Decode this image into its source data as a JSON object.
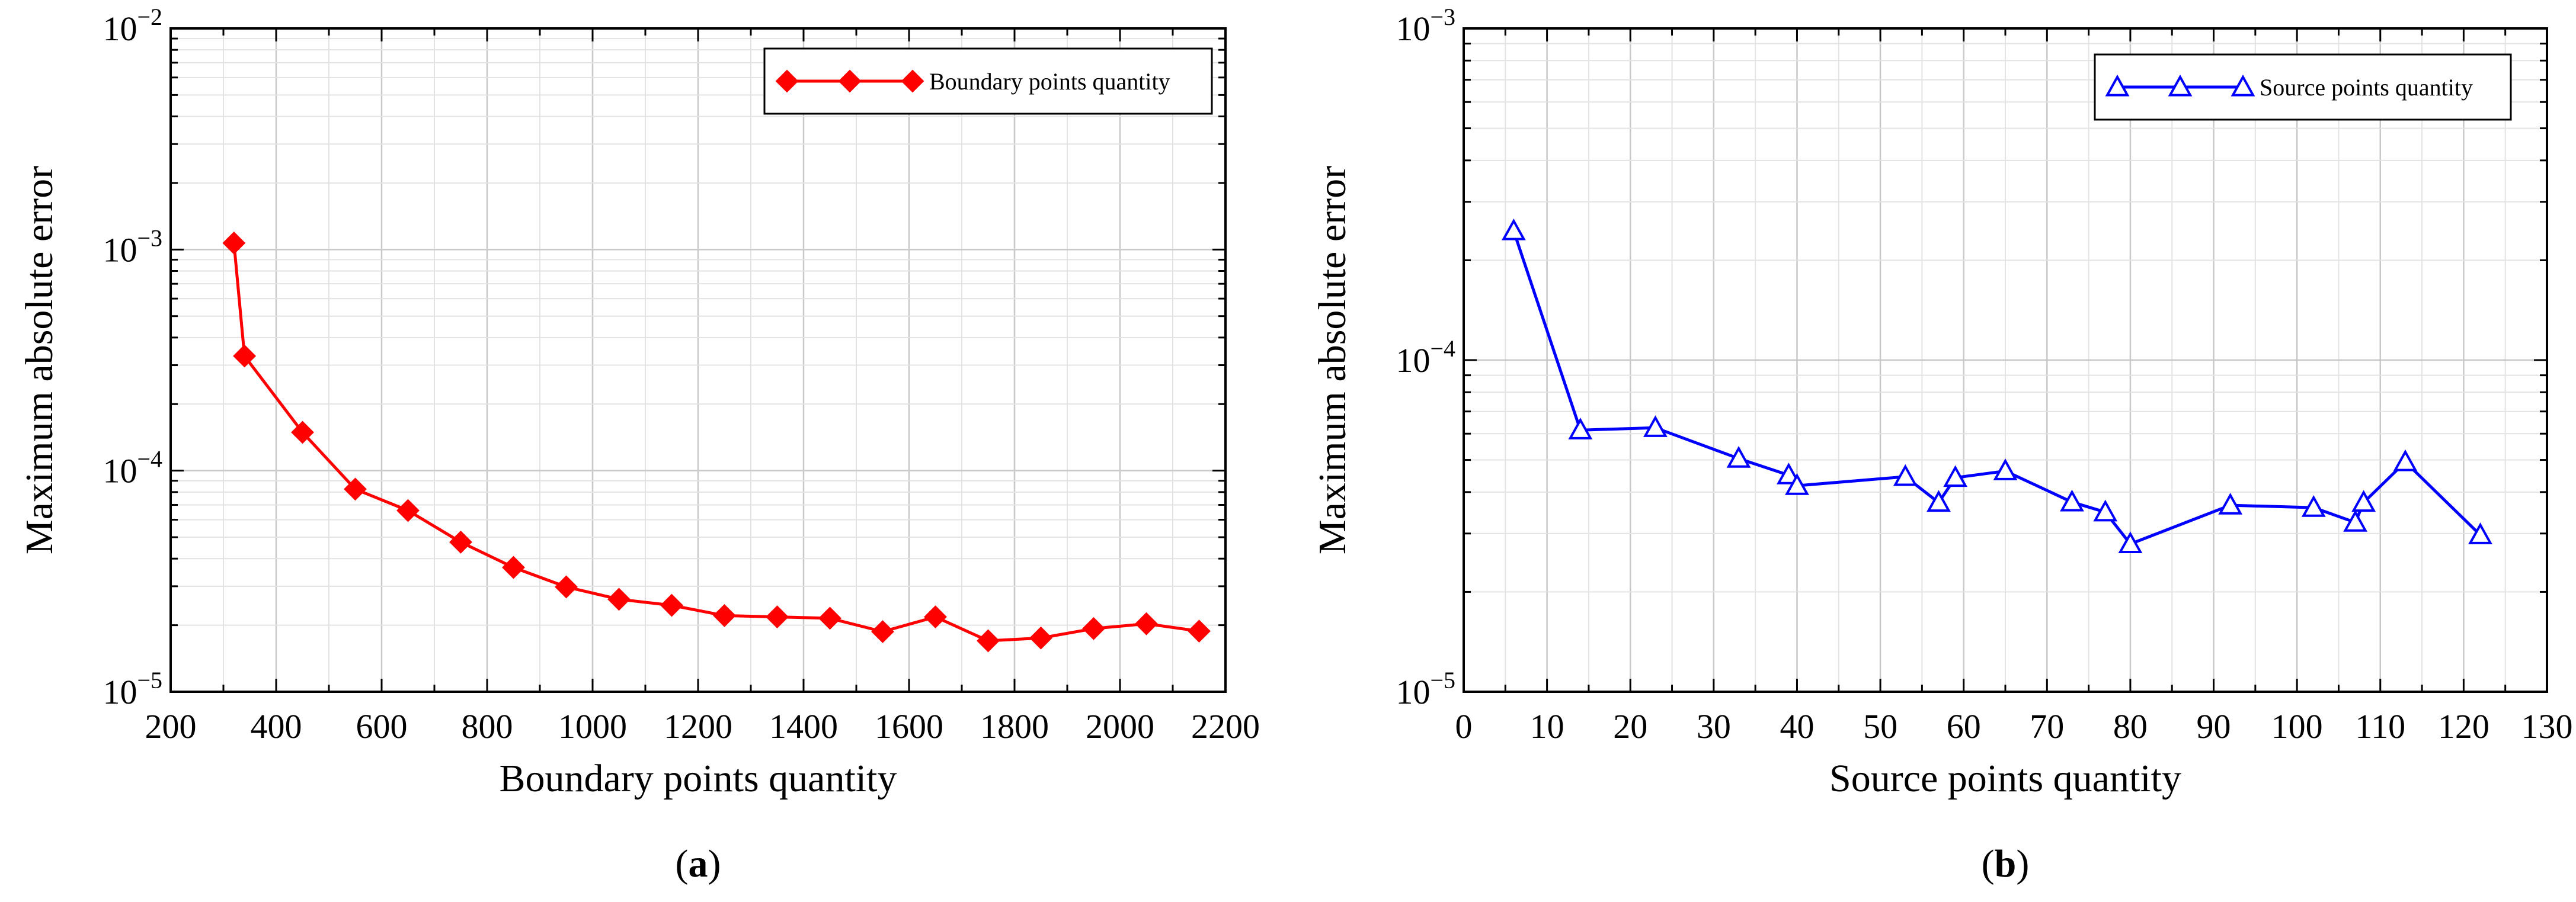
{
  "chart_data": [
    {
      "id": "a",
      "type": "line",
      "yscale": "log",
      "xlabel": "Boundary points quantity",
      "ylabel": "Maximum absolute error",
      "caption_label": "a",
      "xlim": [
        200,
        2200
      ],
      "ylim": [
        1e-05,
        0.01
      ],
      "xticks": [
        200,
        400,
        600,
        800,
        1000,
        1200,
        1400,
        1600,
        1800,
        2000,
        2200
      ],
      "xtick_labels": [
        "200",
        "400",
        "600",
        "800",
        "1000",
        "1200",
        "1400",
        "1600",
        "1800",
        "2000",
        "2200"
      ],
      "xminor_step": 100,
      "yticks": [
        {
          "value": 0.01,
          "base": "10",
          "exp": "−2"
        },
        {
          "value": 0.001,
          "base": "10",
          "exp": "−3"
        },
        {
          "value": 0.0001,
          "base": "10",
          "exp": "−4"
        },
        {
          "value": 1e-05,
          "base": "10",
          "exp": "−5"
        }
      ],
      "grid": true,
      "legend_position": "top-right",
      "series": [
        {
          "name": "Boundary points quantity",
          "color": "#ff0000",
          "marker": "diamond",
          "x": [
            320,
            340,
            450,
            550,
            650,
            750,
            850,
            950,
            1050,
            1150,
            1250,
            1350,
            1450,
            1550,
            1650,
            1750,
            1850,
            1950,
            2050,
            2150
          ],
          "y": [
            0.00107,
            0.00033,
            0.000149,
            8.25e-05,
            6.6e-05,
            4.75e-05,
            3.65e-05,
            2.98e-05,
            2.62e-05,
            2.46e-05,
            2.21e-05,
            2.18e-05,
            2.15e-05,
            1.87e-05,
            2.18e-05,
            1.7e-05,
            1.75e-05,
            1.93e-05,
            2.03e-05,
            1.88e-05
          ]
        }
      ]
    },
    {
      "id": "b",
      "type": "line",
      "yscale": "log",
      "xlabel": "Source points quantity",
      "ylabel": "Maximum absolute error",
      "caption_label": "b",
      "xlim": [
        0,
        130
      ],
      "ylim": [
        1e-05,
        0.001
      ],
      "xticks": [
        0,
        10,
        20,
        30,
        40,
        50,
        60,
        70,
        80,
        90,
        100,
        110,
        120,
        130
      ],
      "xtick_labels": [
        "0",
        "10",
        "20",
        "30",
        "40",
        "50",
        "60",
        "70",
        "80",
        "90",
        "100",
        "110",
        "120",
        "130"
      ],
      "xminor_step": 5,
      "yticks": [
        {
          "value": 0.001,
          "base": "10",
          "exp": "−3"
        },
        {
          "value": 0.0001,
          "base": "10",
          "exp": "−4"
        },
        {
          "value": 1e-05,
          "base": "10",
          "exp": "−5"
        }
      ],
      "grid": true,
      "legend_position": "top-right",
      "series": [
        {
          "name": "Source points quantity",
          "color": "#0000ff",
          "marker": "triangle-open",
          "x": [
            6,
            14,
            23,
            33,
            39,
            40,
            53,
            57,
            59,
            65,
            73,
            77,
            80,
            92,
            102,
            107,
            108,
            113,
            122
          ],
          "y": [
            0.000245,
            6.15e-05,
            6.25e-05,
            5.05e-05,
            4.5e-05,
            4.18e-05,
            4.45e-05,
            3.72e-05,
            4.42e-05,
            4.63e-05,
            3.73e-05,
            3.48e-05,
            2.79e-05,
            3.65e-05,
            3.59e-05,
            3.24e-05,
            3.72e-05,
            4.93e-05,
            2.97e-05
          ]
        }
      ]
    }
  ]
}
